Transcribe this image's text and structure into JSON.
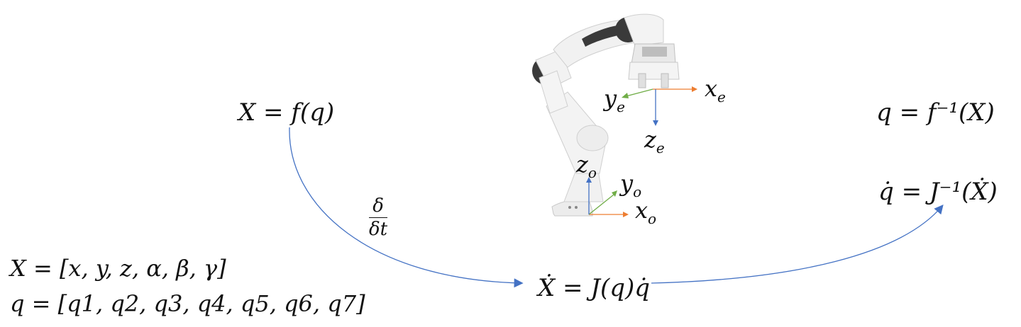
{
  "equations": {
    "forward": "X = f(q)",
    "inverse": "q = f⁻¹(X)",
    "velocity": "Ẋ = J(q)q̇",
    "inverse_velocity": "q̇ = J⁻¹(Ẋ)",
    "task_vector": "X = [x, y, z, α, β, γ]",
    "joint_vector": "q = [q1, q2, q3, q4, q5, q6, q7]"
  },
  "derivative_label": {
    "numerator": "δ",
    "denominator": "δt"
  },
  "frames": {
    "end_effector": {
      "x": "x",
      "y": "y",
      "z": "z",
      "subscript": "e"
    },
    "origin": {
      "x": "x",
      "y": "y",
      "z": "z",
      "subscript": "o"
    }
  },
  "colors": {
    "x_axis": "#ED7D31",
    "y_axis": "#70AD47",
    "z_axis": "#4472C4",
    "curve": "#4472C4",
    "robot_body": "#f1f1f1",
    "robot_joint": "#3a3a3a"
  }
}
